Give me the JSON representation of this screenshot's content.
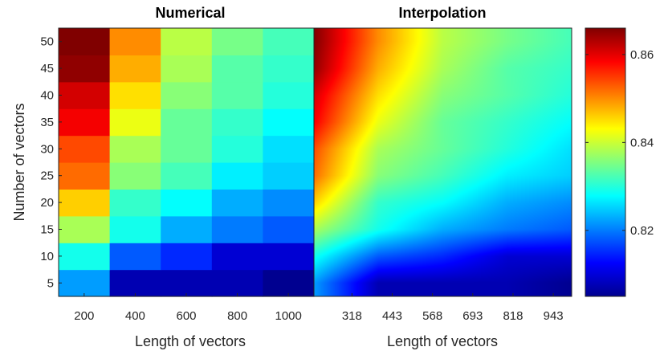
{
  "chart_data": [
    {
      "type": "heatmap",
      "title": "Numerical",
      "xlabel": "Length of vectors",
      "ylabel": "Number of vectors",
      "x": [
        200,
        400,
        600,
        800,
        1000
      ],
      "y": [
        5,
        10,
        15,
        20,
        25,
        30,
        35,
        40,
        45,
        50
      ],
      "x_ticks": [
        "200",
        "400",
        "600",
        "800",
        "1000"
      ],
      "y_ticks": [
        "5",
        "10",
        "15",
        "20",
        "25",
        "30",
        "35",
        "40",
        "45",
        "50"
      ],
      "z": [
        [
          0.822,
          0.808,
          0.808,
          0.808,
          0.806
        ],
        [
          0.829,
          0.818,
          0.815,
          0.81,
          0.81
        ],
        [
          0.838,
          0.829,
          0.823,
          0.82,
          0.818
        ],
        [
          0.846,
          0.831,
          0.828,
          0.823,
          0.821
        ],
        [
          0.852,
          0.836,
          0.832,
          0.827,
          0.825
        ],
        [
          0.854,
          0.838,
          0.834,
          0.83,
          0.826
        ],
        [
          0.859,
          0.842,
          0.834,
          0.831,
          0.828
        ],
        [
          0.861,
          0.845,
          0.836,
          0.833,
          0.83
        ],
        [
          0.865,
          0.848,
          0.838,
          0.833,
          0.831
        ],
        [
          0.866,
          0.85,
          0.839,
          0.835,
          0.832
        ]
      ],
      "colormap": "jet",
      "clim": [
        0.805,
        0.866
      ]
    },
    {
      "type": "heatmap",
      "title": "Interpolation",
      "xlabel": "Length of vectors",
      "ylabel": "",
      "x_ticks": [
        "318",
        "443",
        "568",
        "693",
        "818",
        "943"
      ],
      "x_tick_values": [
        318,
        443,
        568,
        693,
        818,
        943
      ],
      "xlim": [
        200,
        1000
      ],
      "ylim": [
        2.5,
        52.5
      ],
      "method": "smooth interpolation of the Numerical grid",
      "colormap": "jet",
      "clim": [
        0.805,
        0.866
      ]
    },
    {
      "type": "colorbar",
      "ticks": [
        "0.82",
        "0.84",
        "0.86"
      ],
      "tick_values": [
        0.82,
        0.84,
        0.86
      ],
      "range": [
        0.805,
        0.866
      ]
    }
  ]
}
